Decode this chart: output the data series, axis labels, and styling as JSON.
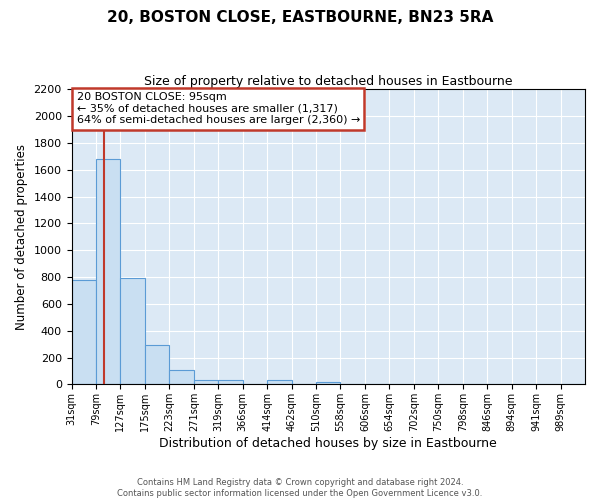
{
  "title": "20, BOSTON CLOSE, EASTBOURNE, BN23 5RA",
  "subtitle": "Size of property relative to detached houses in Eastbourne",
  "xlabel": "Distribution of detached houses by size in Eastbourne",
  "ylabel": "Number of detached properties",
  "footer_line1": "Contains HM Land Registry data © Crown copyright and database right 2024.",
  "footer_line2": "Contains public sector information licensed under the Open Government Licence v3.0.",
  "bin_labels": [
    "31sqm",
    "79sqm",
    "127sqm",
    "175sqm",
    "223sqm",
    "271sqm",
    "319sqm",
    "366sqm",
    "414sqm",
    "462sqm",
    "510sqm",
    "558sqm",
    "606sqm",
    "654sqm",
    "702sqm",
    "750sqm",
    "798sqm",
    "846sqm",
    "894sqm",
    "941sqm",
    "989sqm"
  ],
  "bar_values": [
    775,
    1680,
    795,
    295,
    110,
    35,
    30,
    0,
    30,
    0,
    15,
    0,
    0,
    0,
    0,
    0,
    0,
    0,
    0,
    0,
    5
  ],
  "bar_color": "#c9dff2",
  "bar_edge_color": "#5b9bd5",
  "property_bin_index": 1,
  "property_value": 95,
  "bin_min": 79,
  "bin_max": 127,
  "annotation_title": "20 BOSTON CLOSE: 95sqm",
  "annotation_line1": "← 35% of detached houses are smaller (1,317)",
  "annotation_line2": "64% of semi-detached houses are larger (2,360) →",
  "vline_color": "#c0392b",
  "ylim": [
    0,
    2200
  ],
  "yticks": [
    0,
    200,
    400,
    600,
    800,
    1000,
    1200,
    1400,
    1600,
    1800,
    2000,
    2200
  ],
  "annotation_box_color": "#ffffff",
  "annotation_box_edge": "#c0392b",
  "bg_color": "#dce9f5",
  "bar_color_light": "#dce9f5"
}
